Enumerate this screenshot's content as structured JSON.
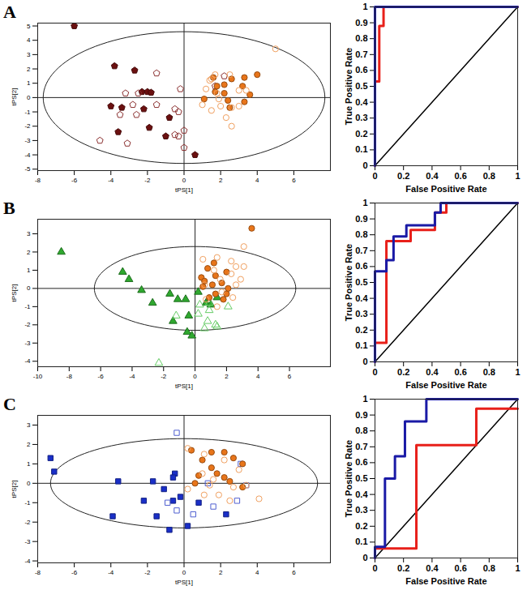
{
  "chart_data": [
    {
      "type": "scatter",
      "title": "A",
      "xlabel": "tPS[1]",
      "ylabel": "tPS[2]",
      "xlim": [
        -8,
        8
      ],
      "ylim": [
        -5.1,
        5.2
      ],
      "xticks": [
        -8,
        -6,
        -4,
        -2,
        0,
        2,
        4,
        6
      ],
      "yticks": [
        -5,
        -4,
        -3,
        -2,
        -1,
        0,
        1,
        2,
        3,
        4,
        5
      ],
      "ellipse": {
        "cx": 0,
        "cy": 0,
        "rx": 7.7,
        "ry": 4.6
      },
      "series": [
        {
          "color": "#6b1010",
          "marker": "pentagon",
          "x": [
            -6,
            -3.8,
            -2.7,
            -2.3,
            -2,
            -1.8,
            -4,
            -3.4,
            -2.2,
            -3.6,
            -1.9,
            -0.8,
            -1,
            0.6
          ],
          "y": [
            5,
            2.2,
            1.9,
            0.4,
            0.4,
            0.35,
            -0.6,
            -0.7,
            -0.8,
            -2.4,
            -2.1,
            -1.4,
            -2.7,
            -4
          ]
        },
        {
          "color": "#8b3030",
          "marker": "pentagon-open",
          "x": [
            -1.5,
            -2.5,
            -3.2,
            -2.8,
            -3.5,
            -2.6,
            -1.5,
            -0.5,
            -0.3,
            -4.6,
            -3.1,
            0,
            -0.5,
            -0.3,
            0,
            2.2,
            1.7,
            -0.2
          ],
          "y": [
            1.7,
            0.3,
            0.3,
            -0.5,
            -1.2,
            -1.2,
            -0.5,
            -0.8,
            -1.0,
            -3.0,
            -3.2,
            -2.3,
            -2.6,
            -2.7,
            -3.5,
            1.5,
            0.8,
            0.6
          ]
        },
        {
          "color": "#e8751a",
          "marker": "circle",
          "x": [
            1.6,
            2.6,
            3.3,
            4,
            1.8,
            3.2,
            2.2,
            2.4,
            3.6,
            2.5,
            3.3,
            1.7,
            1.1,
            2.2
          ],
          "y": [
            1.4,
            1.3,
            1.4,
            1.6,
            0.8,
            0.8,
            0.3,
            -0.2,
            0.2,
            -0.7,
            -0.3,
            0.4,
            -0.1,
            0.9
          ]
        },
        {
          "color": "#f0a060",
          "marker": "circle-open",
          "x": [
            5,
            1.7,
            1.4,
            2.5,
            1.8,
            1.2,
            3,
            2,
            3,
            2.6,
            1.5,
            2.3,
            2.6,
            1.5,
            1.9,
            1,
            3.4
          ],
          "y": [
            3.4,
            1.6,
            1.2,
            1.6,
            0.3,
            0.6,
            0.5,
            -0.6,
            -0.6,
            -0.7,
            -0.9,
            -1.4,
            -2,
            1.3,
            -0.1,
            -0.5,
            0.5
          ]
        }
      ]
    },
    {
      "type": "line",
      "xlabel": "False Positive Rate",
      "ylabel": "True Positive Rate",
      "xlim": [
        0,
        1
      ],
      "ylim": [
        0,
        1
      ],
      "xticks": [
        0,
        0.2,
        0.4,
        0.6,
        0.8,
        1
      ],
      "yticks": [
        0,
        0.1,
        0.2,
        0.3,
        0.4,
        0.5,
        0.6,
        0.7,
        0.8,
        0.9,
        1
      ],
      "series": [
        {
          "color": "#000000",
          "x": [
            0,
            1
          ],
          "y": [
            0,
            1
          ]
        },
        {
          "color": "#e8201a",
          "x": [
            0,
            0,
            0.03,
            0.03,
            0.06,
            0.06,
            1
          ],
          "y": [
            0,
            0.53,
            0.53,
            0.88,
            0.88,
            1,
            1
          ]
        },
        {
          "color": "#1a1aa6",
          "x": [
            0,
            0,
            1
          ],
          "y": [
            0,
            1,
            1
          ]
        }
      ]
    },
    {
      "type": "scatter",
      "title": "B",
      "xlabel": "tPS[1]",
      "ylabel": "tPS[2]",
      "xlim": [
        -10,
        8.6
      ],
      "ylim": [
        -4.3,
        3.8
      ],
      "xticks": [
        -10,
        -8,
        -6,
        -4,
        -2,
        0,
        2,
        4,
        6
      ],
      "yticks": [
        -4,
        -3,
        -2,
        -1,
        0,
        1,
        2,
        3
      ],
      "ellipse": {
        "cx": 0,
        "cy": 0,
        "rx": 6.4,
        "ry": 2.3
      },
      "series": [
        {
          "color": "#2fa82f",
          "marker": "triangle",
          "x": [
            -8.5,
            -4.6,
            -4.2,
            -3.4,
            -1.6,
            -2.7,
            -1.1,
            -0.6,
            0.7,
            1,
            1.4,
            -0.4,
            -1.4,
            -0.5,
            -0.2,
            0.2
          ],
          "y": [
            2,
            0.9,
            0.5,
            -0.1,
            -0.3,
            -0.8,
            -0.6,
            -0.6,
            -0.8,
            -0.9,
            -0.5,
            -1.5,
            -1.8,
            -2.4,
            -2.6,
            -0.2
          ]
        },
        {
          "color": "#66cc66",
          "marker": "triangle-open",
          "x": [
            -2.3,
            -1.2,
            0.3,
            0.9,
            1.4,
            0.8,
            0.2,
            2.1,
            0.6,
            0.9,
            1.3
          ],
          "y": [
            -4.1,
            -1.5,
            -0.9,
            -1.2,
            -2.1,
            -1.8,
            -1.4,
            -1,
            -2.2,
            -0.8,
            -2
          ]
        },
        {
          "color": "#e8751a",
          "marker": "circle",
          "x": [
            3.6,
            1.2,
            0.8,
            0.4,
            1.3,
            2,
            0.5,
            1.1,
            1.7,
            2.1,
            1.3,
            2,
            0.9,
            1.8,
            0.6
          ],
          "y": [
            3.3,
            1.4,
            1.1,
            0.6,
            0.7,
            0.9,
            0.1,
            0.2,
            0.3,
            0,
            -0.3,
            -0.3,
            -0.5,
            -0.6,
            0.4
          ]
        },
        {
          "color": "#f0a060",
          "marker": "circle-open",
          "x": [
            3.1,
            1.4,
            0.5,
            2.3,
            2.6,
            3.1,
            1.2,
            2.3,
            0.6,
            2.6,
            1.7,
            2.4,
            0.7,
            1.4,
            2.9,
            1.6
          ],
          "y": [
            2.3,
            1.7,
            1.6,
            1.5,
            1.2,
            1.2,
            1,
            0.8,
            0.2,
            0.2,
            -0.2,
            -0.5,
            -0.6,
            -1,
            0.5,
            0.5
          ]
        }
      ]
    },
    {
      "type": "line",
      "xlabel": "False Positive Rate",
      "ylabel": "True Positive Rate",
      "xlim": [
        0,
        1
      ],
      "ylim": [
        0,
        1
      ],
      "xticks": [
        0,
        0.2,
        0.4,
        0.6,
        0.8,
        1
      ],
      "yticks": [
        0,
        0.1,
        0.2,
        0.3,
        0.4,
        0.5,
        0.6,
        0.7,
        0.8,
        0.9,
        1
      ],
      "series": [
        {
          "color": "#000000",
          "x": [
            0,
            1
          ],
          "y": [
            0,
            1
          ]
        },
        {
          "color": "#e8201a",
          "x": [
            0,
            0,
            0.08,
            0.08,
            0.25,
            0.25,
            0.42,
            0.42,
            0.5,
            0.5,
            1
          ],
          "y": [
            0,
            0.12,
            0.12,
            0.76,
            0.76,
            0.83,
            0.83,
            0.94,
            0.94,
            1,
            1
          ]
        },
        {
          "color": "#1a1aa6",
          "x": [
            0,
            0,
            0.08,
            0.08,
            0.13,
            0.13,
            0.22,
            0.22,
            0.42,
            0.42,
            0.46,
            0.46,
            1
          ],
          "y": [
            0,
            0.57,
            0.57,
            0.64,
            0.64,
            0.79,
            0.79,
            0.86,
            0.86,
            0.94,
            0.94,
            1,
            1
          ]
        }
      ]
    },
    {
      "type": "scatter",
      "title": "C",
      "xlabel": "tPS[1]",
      "ylabel": "tPS[2]",
      "xlim": [
        -8,
        8
      ],
      "ylim": [
        -4.1,
        3.5
      ],
      "xticks": [
        -8,
        -6,
        -4,
        -2,
        0,
        2,
        4,
        6
      ],
      "yticks": [
        -4,
        -3,
        -2,
        -1,
        0,
        1,
        2,
        3
      ],
      "ellipse": {
        "cx": 0,
        "cy": 0,
        "rx": 7.3,
        "ry": 2.3
      },
      "series": [
        {
          "color": "#1a2fc8",
          "marker": "square",
          "x": [
            -7.3,
            -7.1,
            -3.6,
            -1.7,
            -0.5,
            -0.6,
            -1.1,
            -2.2,
            -0.6,
            0.8,
            -3.9,
            -1.5,
            2.3,
            -0.8,
            0.2,
            -0.2
          ],
          "y": [
            1.3,
            0.6,
            0.1,
            0.1,
            0.5,
            0.3,
            -0.3,
            -0.9,
            -0.9,
            -1,
            -1.7,
            -1.7,
            -1.6,
            -2.4,
            -2.2,
            -0.7
          ]
        },
        {
          "color": "#5060d0",
          "marker": "square-open",
          "x": [
            -0.4,
            3.1,
            3.4,
            1.3,
            -0.4,
            0.5,
            2.9,
            1.6,
            -0.9
          ],
          "y": [
            2.6,
            1,
            -0.1,
            0,
            -1.4,
            -1.6,
            -0.9,
            -1.2,
            -1
          ]
        },
        {
          "color": "#e8751a",
          "marker": "circle",
          "x": [
            0.4,
            1.5,
            2.2,
            1,
            2.7,
            1.5,
            3.2,
            0.8,
            2.2,
            2.5,
            3.2,
            0.6,
            1.8
          ],
          "y": [
            1.7,
            1.6,
            1.6,
            1.2,
            1.3,
            0.8,
            1,
            0.4,
            0.3,
            0.1,
            -0.2,
            0,
            0.5
          ]
        },
        {
          "color": "#f0a060",
          "marker": "circle-open",
          "x": [
            0.2,
            1.1,
            2.2,
            3,
            1,
            1.6,
            2.7,
            3.4,
            1.9,
            2.5,
            1.1,
            0.2,
            4.1,
            1.4
          ],
          "y": [
            1.8,
            1.5,
            1.2,
            0.7,
            0.5,
            0.2,
            -0.2,
            -0.1,
            -0.6,
            -0.9,
            -0.6,
            -0.3,
            -0.8,
            -0.1
          ]
        }
      ]
    },
    {
      "type": "line",
      "xlabel": "False Positive Rate",
      "ylabel": "True Positive Rate",
      "xlim": [
        0,
        1
      ],
      "ylim": [
        0,
        1
      ],
      "xticks": [
        0,
        0.2,
        0.4,
        0.6,
        0.8,
        1
      ],
      "yticks": [
        0,
        0.1,
        0.2,
        0.3,
        0.4,
        0.5,
        0.6,
        0.7,
        0.8,
        0.9,
        1
      ],
      "series": [
        {
          "color": "#000000",
          "x": [
            0,
            1
          ],
          "y": [
            0,
            1
          ]
        },
        {
          "color": "#e8201a",
          "x": [
            0,
            0,
            0.29,
            0.29,
            0.71,
            0.71,
            1
          ],
          "y": [
            0,
            0.06,
            0.06,
            0.71,
            0.71,
            0.94,
            0.94
          ]
        },
        {
          "color": "#1a1aa6",
          "x": [
            0,
            0,
            0.07,
            0.07,
            0.14,
            0.14,
            0.21,
            0.21,
            0.36,
            0.36,
            1
          ],
          "y": [
            0,
            0.07,
            0.07,
            0.5,
            0.5,
            0.64,
            0.64,
            0.86,
            0.86,
            1,
            1
          ]
        }
      ]
    }
  ]
}
